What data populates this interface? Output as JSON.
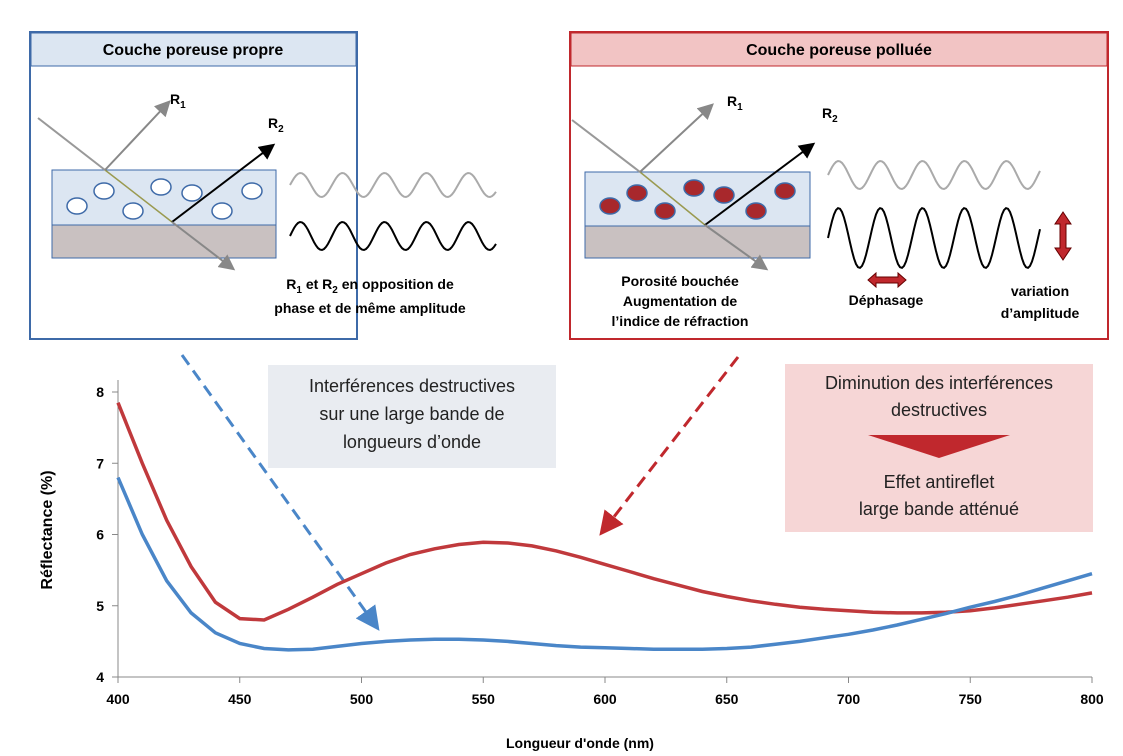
{
  "panels": {
    "left": {
      "title": "Couche poreuse propre",
      "r1": {
        "base": "R",
        "sub": "1"
      },
      "r2": {
        "base": "R",
        "sub": "2"
      },
      "caption": {
        "line1": [
          "R",
          "1",
          " et R",
          "2",
          " en opposition de"
        ],
        "line2": "phase et de même amplitude"
      }
    },
    "right": {
      "title": "Couche poreuse polluée",
      "r1": {
        "base": "R",
        "sub": "1"
      },
      "r2": {
        "base": "R",
        "sub": "2"
      },
      "pore_text": [
        "Porosité bouchée",
        "Augmentation de",
        "l’indice de réfraction"
      ],
      "phase": "Déphasage",
      "amplitude": [
        "variation",
        "d’amplitude"
      ]
    }
  },
  "annotations": {
    "left_box": [
      "Interférences destructives",
      "sur une large bande de",
      "longueurs d’onde"
    ],
    "right_box_top": [
      "Diminution des interférences",
      "destructives"
    ],
    "right_box_bottom": [
      "Effet antireflet",
      "large bande atténué"
    ]
  },
  "chart_data": {
    "type": "line",
    "x_label": "Longueur d'onde (nm)",
    "y_label": "Réflectance (%)",
    "x": [
      400,
      410,
      420,
      430,
      440,
      450,
      460,
      470,
      480,
      490,
      500,
      510,
      520,
      530,
      540,
      550,
      560,
      570,
      580,
      590,
      600,
      610,
      620,
      630,
      640,
      650,
      660,
      670,
      680,
      690,
      700,
      710,
      720,
      730,
      740,
      750,
      760,
      770,
      780,
      790,
      800
    ],
    "series": [
      {
        "name": "Couche poreuse polluée",
        "color": "#c0393c",
        "values": [
          7.85,
          7.0,
          6.2,
          5.55,
          5.05,
          4.82,
          4.8,
          4.95,
          5.12,
          5.3,
          5.45,
          5.6,
          5.72,
          5.8,
          5.86,
          5.89,
          5.88,
          5.84,
          5.77,
          5.68,
          5.58,
          5.48,
          5.38,
          5.29,
          5.2,
          5.13,
          5.07,
          5.02,
          4.98,
          4.95,
          4.93,
          4.91,
          4.9,
          4.9,
          4.91,
          4.93,
          4.97,
          5.02,
          5.07,
          5.12,
          5.18
        ]
      },
      {
        "name": "Couche poreuse propre",
        "color": "#4a86c8",
        "values": [
          6.8,
          6.0,
          5.35,
          4.9,
          4.62,
          4.47,
          4.4,
          4.38,
          4.39,
          4.43,
          4.47,
          4.5,
          4.52,
          4.53,
          4.53,
          4.52,
          4.5,
          4.47,
          4.44,
          4.42,
          4.41,
          4.4,
          4.39,
          4.39,
          4.39,
          4.4,
          4.42,
          4.46,
          4.5,
          4.55,
          4.6,
          4.66,
          4.73,
          4.81,
          4.89,
          4.98,
          5.06,
          5.15,
          5.25,
          5.35,
          5.45
        ]
      }
    ],
    "xlim": [
      400,
      800
    ],
    "ylim": [
      4,
      8
    ],
    "xticks": [
      400,
      450,
      500,
      550,
      600,
      650,
      700,
      750,
      800
    ],
    "yticks": [
      4,
      5,
      6,
      7,
      8
    ]
  }
}
